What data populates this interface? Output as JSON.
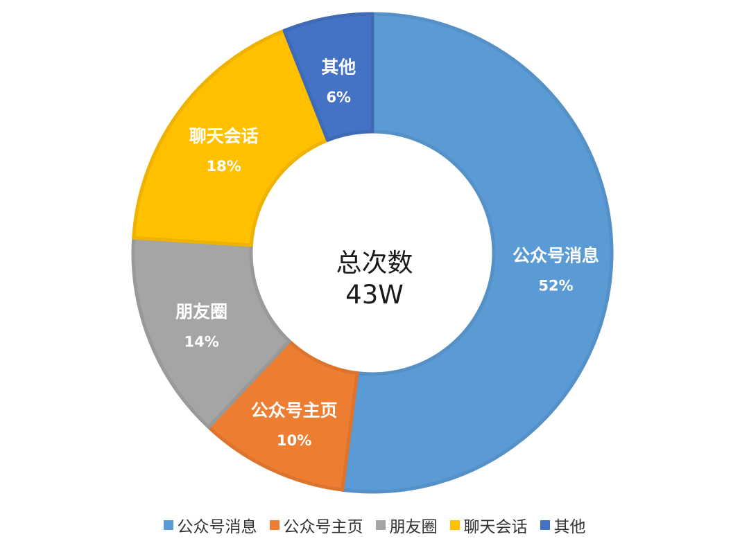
{
  "chart_data": {
    "type": "pie",
    "donut": true,
    "title": "",
    "center_label": {
      "line1": "总次数",
      "line2": "43W"
    },
    "start_angle_deg": 0,
    "direction": "clockwise",
    "legend_position": "bottom",
    "slices": [
      {
        "label": "公众号消息",
        "value": 52,
        "value_text": "52%",
        "color": "#5B9BD5"
      },
      {
        "label": "公众号主页",
        "value": 10,
        "value_text": "10%",
        "color": "#ED7D31"
      },
      {
        "label": "朋友圈",
        "value": 14,
        "value_text": "14%",
        "color": "#A5A5A5"
      },
      {
        "label": "聊天会话",
        "value": 18,
        "value_text": "18%",
        "color": "#FFC000"
      },
      {
        "label": "其他",
        "value": 6,
        "value_text": "6%",
        "color": "#4472C4"
      }
    ]
  }
}
